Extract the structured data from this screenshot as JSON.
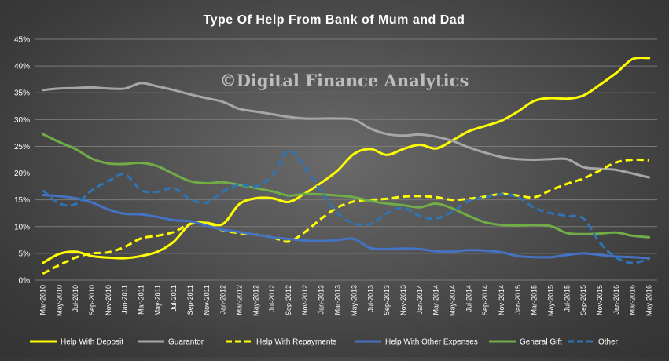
{
  "chart_data": {
    "type": "line",
    "title": "Type Of Help From Bank of Mum and Dad",
    "watermark": "©Digital Finance Analytics",
    "xlabel": "",
    "ylabel": "",
    "ylim": [
      0,
      45
    ],
    "y_ticks": [
      "0%",
      "5%",
      "10%",
      "15%",
      "20%",
      "25%",
      "30%",
      "35%",
      "40%",
      "45%"
    ],
    "grid": true,
    "legend_position": "bottom",
    "x": [
      "Mar-2010",
      "May-2010",
      "Jul-2010",
      "Sep-2010",
      "Nov-2010",
      "Jan-2011",
      "Mar-2011",
      "May-2011",
      "Jul-2011",
      "Sep-2011",
      "Nov-2011",
      "Jan-2012",
      "Mar-2012",
      "May-2012",
      "Jul-2012",
      "Sep-2012",
      "Nov-2012",
      "Jan-2013",
      "Mar-2013",
      "May-2013",
      "Jul-2013",
      "Sep-2013",
      "Nov-2013",
      "Jan-2014",
      "Mar-2014",
      "May-2014",
      "Jul-2014",
      "Sep-2014",
      "Nov-2014",
      "Jan-2015",
      "Mar-2015",
      "May-2015",
      "Jul-2015",
      "Sep-2015",
      "Nov-2015",
      "Jan-2016",
      "Mar-2016",
      "May-2016"
    ],
    "series": [
      {
        "name": "Help With Deposit",
        "color": "#ffff00",
        "dash": false,
        "values": [
          3.2,
          4.9,
          5.3,
          4.5,
          4.2,
          4.1,
          4.5,
          5.3,
          7.2,
          10.5,
          10.7,
          10.5,
          14.2,
          15.3,
          15.3,
          14.6,
          16.2,
          18.2,
          20.5,
          23.6,
          24.5,
          23.4,
          24.5,
          25.3,
          24.6,
          26.1,
          27.8,
          28.8,
          29.8,
          31.5,
          33.5,
          34.0,
          33.9,
          34.5,
          36.5,
          38.7,
          41.3,
          41.5
        ]
      },
      {
        "name": "Guarantor",
        "color": "#a6a6a6",
        "dash": false,
        "values": [
          35.5,
          35.8,
          35.9,
          36.0,
          35.8,
          35.8,
          36.8,
          36.2,
          35.5,
          34.7,
          34.0,
          33.3,
          32.0,
          31.5,
          31.0,
          30.5,
          30.2,
          30.2,
          30.2,
          30.0,
          28.3,
          27.3,
          27.0,
          27.2,
          26.8,
          26.0,
          24.8,
          23.8,
          23.0,
          22.6,
          22.5,
          22.6,
          22.6,
          21.1,
          20.8,
          20.6,
          19.9,
          19.2
        ]
      },
      {
        "name": "Help With Repayments",
        "color": "#ffff00",
        "dash": true,
        "values": [
          1.2,
          2.8,
          4.2,
          5.0,
          5.2,
          6.2,
          7.8,
          8.3,
          9.0,
          10.5,
          10.5,
          9.3,
          8.8,
          8.5,
          8.0,
          7.2,
          9.0,
          11.5,
          13.6,
          14.7,
          15.0,
          15.2,
          15.6,
          15.7,
          15.5,
          15.0,
          15.2,
          15.6,
          16.1,
          15.8,
          15.5,
          16.8,
          18.0,
          19.0,
          20.5,
          22.0,
          22.5,
          22.4
        ]
      },
      {
        "name": "Help With Other Expenses",
        "color": "#4472c4",
        "dash": false,
        "values": [
          15.9,
          15.7,
          15.3,
          14.5,
          13.2,
          12.4,
          12.3,
          11.8,
          11.2,
          11.0,
          10.2,
          9.4,
          9.0,
          8.5,
          8.0,
          7.7,
          7.4,
          7.3,
          7.5,
          7.7,
          6.0,
          5.8,
          5.9,
          5.8,
          5.4,
          5.3,
          5.6,
          5.5,
          5.2,
          4.5,
          4.3,
          4.3,
          4.7,
          5.0,
          4.7,
          4.4,
          4.3,
          4.1
        ]
      },
      {
        "name": "General Gift",
        "color": "#70ad47",
        "dash": false,
        "values": [
          27.3,
          25.8,
          24.5,
          22.7,
          21.8,
          21.7,
          21.9,
          21.3,
          19.8,
          18.5,
          18.1,
          18.3,
          17.8,
          17.2,
          16.6,
          15.8,
          16.1,
          16.0,
          15.8,
          15.5,
          14.8,
          14.3,
          14.0,
          13.6,
          14.3,
          13.4,
          12.0,
          10.8,
          10.3,
          10.2,
          10.3,
          10.1,
          8.8,
          8.6,
          8.7,
          8.9,
          8.3,
          8.0
        ]
      },
      {
        "name": "Other",
        "color": "#2e75b6",
        "dash": true,
        "values": [
          16.8,
          14.3,
          14.2,
          16.8,
          18.5,
          19.8,
          16.8,
          16.5,
          17.2,
          15.1,
          14.5,
          16.5,
          17.8,
          17.5,
          19.5,
          24.2,
          21.0,
          16.5,
          12.5,
          10.6,
          10.5,
          12.5,
          13.5,
          12.0,
          11.5,
          12.8,
          14.8,
          15.5,
          16.0,
          15.5,
          13.5,
          12.5,
          12.0,
          11.5,
          7.0,
          4.2,
          3.2,
          4.0
        ]
      }
    ]
  }
}
